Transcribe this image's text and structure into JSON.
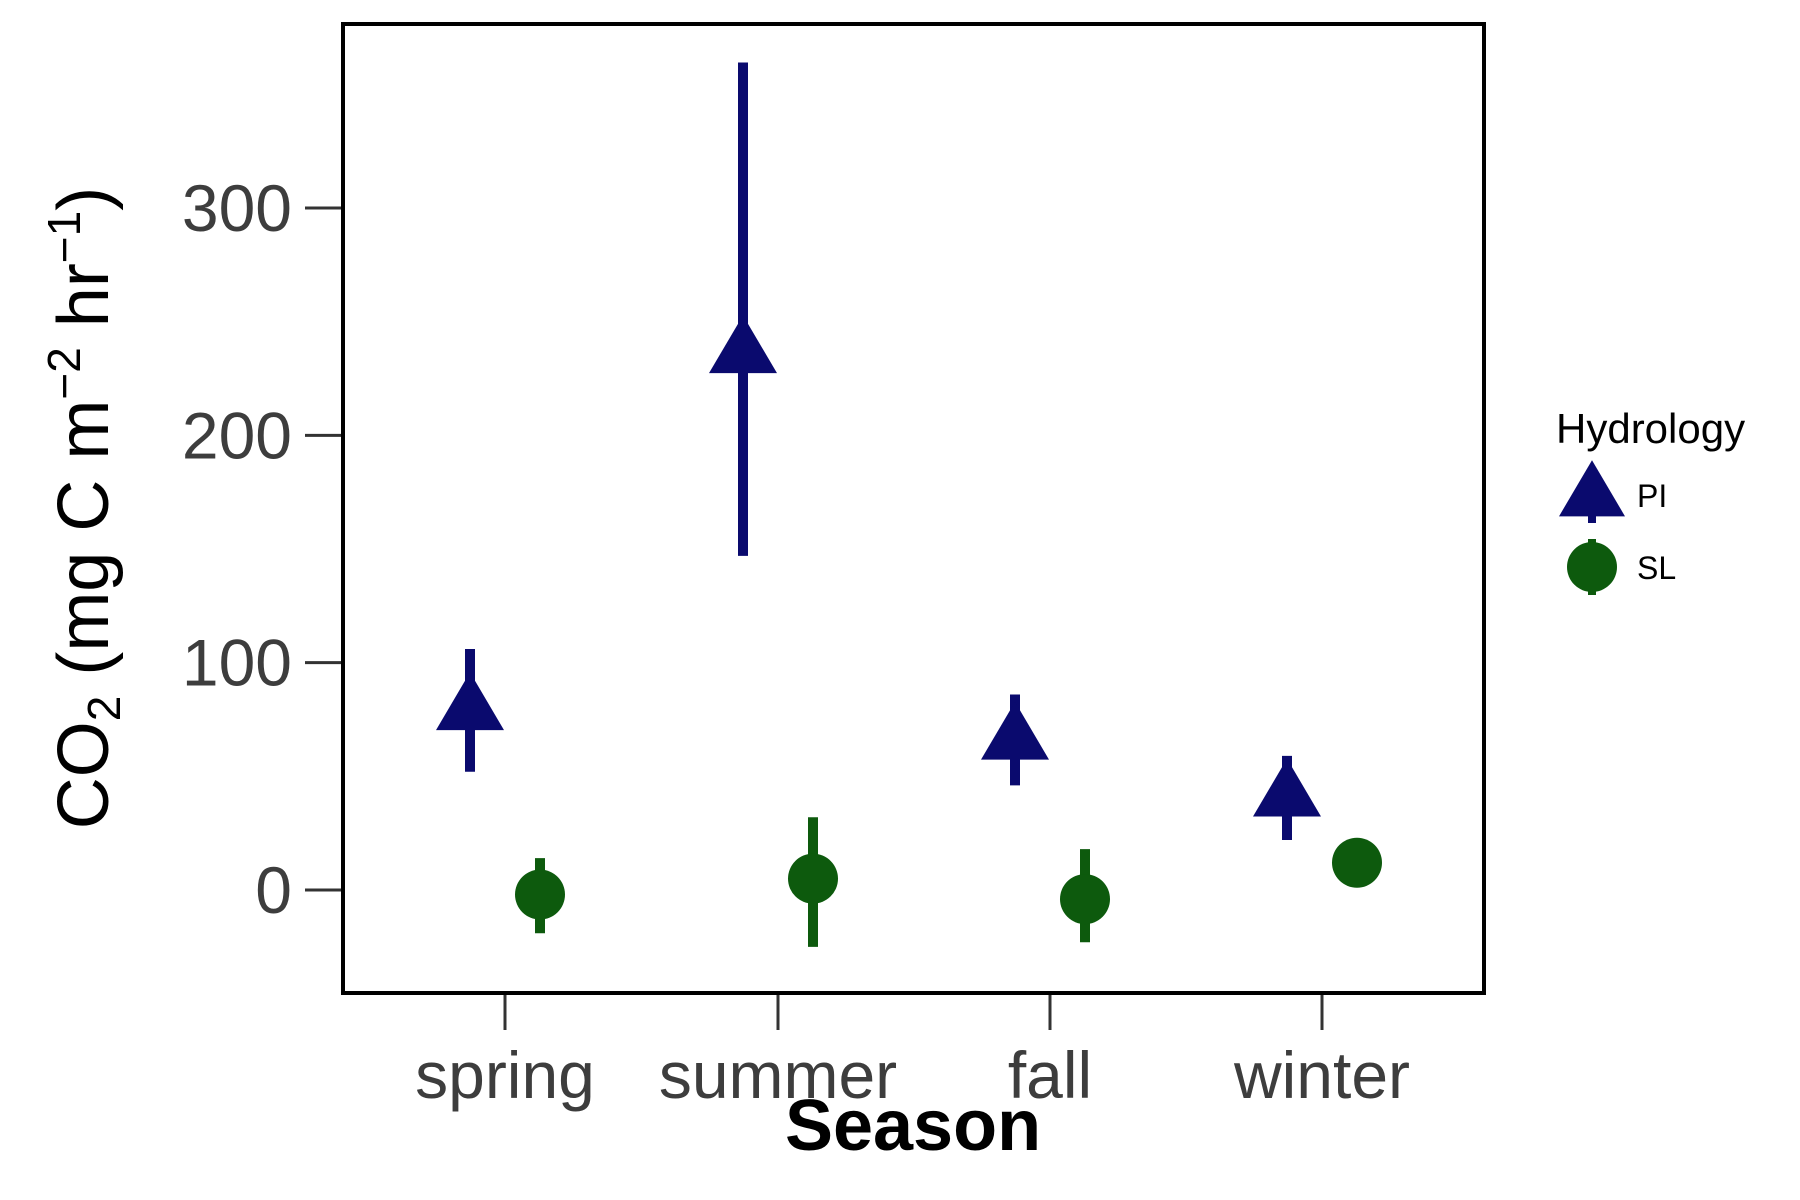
{
  "chart_data": {
    "type": "scatter",
    "xlabel": "Season",
    "ylabel": {
      "prefix": "CO",
      "sub": "2",
      "part1": " (mg C m",
      "sup1": "−2",
      "part2": " hr",
      "sup2": "−1",
      "suffix": ")"
    },
    "categories": [
      "spring",
      "summer",
      "fall",
      "winter"
    ],
    "yticks": [
      0,
      100,
      200,
      300
    ],
    "ylim": [
      -44,
      382
    ],
    "grid": false,
    "legend": {
      "title": "Hydrology",
      "position": "right"
    },
    "series": [
      {
        "name": "PI",
        "marker": "triangle",
        "color": "#0a0a6e",
        "values": [
          80,
          237,
          67,
          42
        ],
        "lower": [
          52,
          147,
          46,
          22
        ],
        "upper": [
          106,
          364,
          86,
          59
        ]
      },
      {
        "name": "SL",
        "marker": "circle",
        "color": "#0d5a0d",
        "values": [
          -2,
          5,
          -4,
          12
        ],
        "lower": [
          -19,
          -25,
          -23,
          12
        ],
        "upper": [
          14,
          32,
          18,
          12
        ]
      }
    ]
  }
}
